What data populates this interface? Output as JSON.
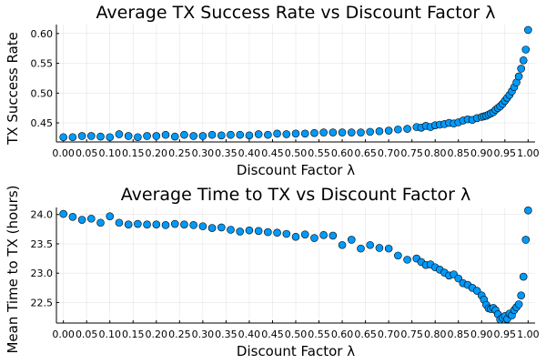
{
  "chart_data": [
    {
      "type": "scatter",
      "title": "Average TX Success Rate vs Discount Factor λ",
      "xlabel": "Discount Factor λ",
      "ylabel": "TX Success Rate",
      "xlim": [
        -0.015,
        1.015
      ],
      "ylim": [
        0.418,
        0.615
      ],
      "grid": true,
      "legend": "none",
      "marker_color": "#009AFA",
      "xticks": [
        0.0,
        0.05,
        0.1,
        0.15,
        0.2,
        0.25,
        0.3,
        0.35,
        0.4,
        0.45,
        0.5,
        0.55,
        0.6,
        0.65,
        0.7,
        0.75,
        0.8,
        0.85,
        0.9,
        0.95,
        1.0
      ],
      "xtick_labels": [
        "0.00",
        "0.05",
        "0.10",
        "0.15",
        "0.20",
        "0.25",
        "0.30",
        "0.35",
        "0.40",
        "0.45",
        "0.50",
        "0.55",
        "0.60",
        "0.65",
        "0.70",
        "0.75",
        "0.80",
        "0.85",
        "0.90",
        "0.95",
        "1.00"
      ],
      "yticks": [
        0.45,
        0.5,
        0.55,
        0.6
      ],
      "ytick_labels": [
        "0.45",
        "0.50",
        "0.55",
        "0.60"
      ],
      "x": [
        0.0,
        0.02,
        0.04,
        0.06,
        0.08,
        0.1,
        0.12,
        0.14,
        0.16,
        0.18,
        0.2,
        0.22,
        0.24,
        0.26,
        0.28,
        0.3,
        0.32,
        0.34,
        0.36,
        0.38,
        0.4,
        0.42,
        0.44,
        0.46,
        0.48,
        0.5,
        0.52,
        0.54,
        0.56,
        0.58,
        0.6,
        0.62,
        0.64,
        0.66,
        0.68,
        0.7,
        0.72,
        0.74,
        0.76,
        0.77,
        0.78,
        0.79,
        0.8,
        0.81,
        0.82,
        0.83,
        0.84,
        0.85,
        0.86,
        0.87,
        0.88,
        0.89,
        0.9,
        0.905,
        0.91,
        0.915,
        0.92,
        0.925,
        0.93,
        0.935,
        0.94,
        0.945,
        0.95,
        0.955,
        0.96,
        0.965,
        0.97,
        0.975,
        0.98,
        0.985,
        0.99,
        0.995,
        1.0
      ],
      "y": [
        0.426,
        0.426,
        0.428,
        0.428,
        0.427,
        0.426,
        0.431,
        0.428,
        0.426,
        0.428,
        0.428,
        0.43,
        0.427,
        0.43,
        0.428,
        0.428,
        0.43,
        0.429,
        0.43,
        0.43,
        0.429,
        0.431,
        0.43,
        0.432,
        0.431,
        0.432,
        0.432,
        0.433,
        0.434,
        0.434,
        0.434,
        0.434,
        0.434,
        0.435,
        0.436,
        0.437,
        0.439,
        0.44,
        0.443,
        0.442,
        0.445,
        0.443,
        0.446,
        0.447,
        0.448,
        0.45,
        0.449,
        0.451,
        0.454,
        0.456,
        0.455,
        0.458,
        0.46,
        0.461,
        0.462,
        0.464,
        0.466,
        0.468,
        0.472,
        0.475,
        0.478,
        0.482,
        0.487,
        0.492,
        0.497,
        0.503,
        0.51,
        0.518,
        0.528,
        0.541,
        0.555,
        0.573,
        0.606
      ]
    },
    {
      "type": "scatter",
      "title": "Average Time to TX vs Discount Factor λ",
      "xlabel": "Discount Factor λ",
      "ylabel": "Mean Time to TX (hours)",
      "xlim": [
        -0.015,
        1.015
      ],
      "ylim": [
        22.15,
        24.12
      ],
      "grid": true,
      "legend": "none",
      "marker_color": "#009AFA",
      "xticks": [
        0.0,
        0.05,
        0.1,
        0.15,
        0.2,
        0.25,
        0.3,
        0.35,
        0.4,
        0.45,
        0.5,
        0.55,
        0.6,
        0.65,
        0.7,
        0.75,
        0.8,
        0.85,
        0.9,
        0.95,
        1.0
      ],
      "xtick_labels": [
        "0.00",
        "0.05",
        "0.10",
        "0.15",
        "0.20",
        "0.25",
        "0.30",
        "0.35",
        "0.40",
        "0.45",
        "0.50",
        "0.55",
        "0.60",
        "0.65",
        "0.70",
        "0.75",
        "0.80",
        "0.85",
        "0.90",
        "0.95",
        "1.00"
      ],
      "yticks": [
        22.5,
        23.0,
        23.5,
        24.0
      ],
      "ytick_labels": [
        "22.5",
        "23.0",
        "23.5",
        "24.0"
      ],
      "x": [
        0.0,
        0.02,
        0.04,
        0.06,
        0.08,
        0.1,
        0.12,
        0.14,
        0.16,
        0.18,
        0.2,
        0.22,
        0.24,
        0.26,
        0.28,
        0.3,
        0.32,
        0.34,
        0.36,
        0.38,
        0.4,
        0.42,
        0.44,
        0.46,
        0.48,
        0.5,
        0.52,
        0.54,
        0.56,
        0.58,
        0.6,
        0.62,
        0.64,
        0.66,
        0.68,
        0.7,
        0.72,
        0.74,
        0.76,
        0.77,
        0.78,
        0.79,
        0.8,
        0.81,
        0.82,
        0.83,
        0.84,
        0.85,
        0.86,
        0.87,
        0.88,
        0.89,
        0.9,
        0.905,
        0.91,
        0.915,
        0.92,
        0.925,
        0.93,
        0.935,
        0.94,
        0.945,
        0.95,
        0.955,
        0.96,
        0.965,
        0.97,
        0.975,
        0.98,
        0.985,
        0.99,
        0.995,
        1.0
      ],
      "y": [
        24.01,
        23.96,
        23.91,
        23.93,
        23.86,
        23.97,
        23.86,
        23.83,
        23.84,
        23.83,
        23.83,
        23.82,
        23.84,
        23.83,
        23.82,
        23.8,
        23.77,
        23.78,
        23.74,
        23.71,
        23.73,
        23.72,
        23.7,
        23.69,
        23.67,
        23.62,
        23.66,
        23.6,
        23.65,
        23.64,
        23.48,
        23.57,
        23.42,
        23.48,
        23.43,
        23.42,
        23.3,
        23.23,
        23.25,
        23.19,
        23.14,
        23.15,
        23.1,
        23.06,
        23.01,
        22.96,
        22.98,
        22.91,
        22.83,
        22.8,
        22.75,
        22.7,
        22.62,
        22.55,
        22.46,
        22.4,
        22.39,
        22.41,
        22.37,
        22.3,
        22.21,
        22.24,
        22.27,
        22.22,
        22.31,
        22.28,
        22.37,
        22.42,
        22.47,
        22.62,
        22.94,
        23.57,
        24.07
      ]
    }
  ]
}
